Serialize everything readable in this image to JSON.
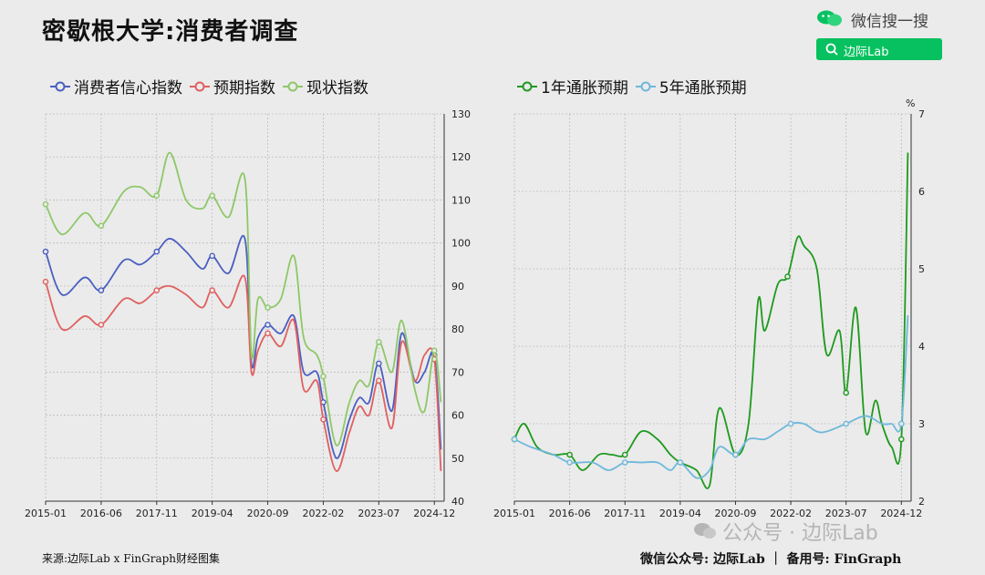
{
  "title": "密歇根大学:消费者调查",
  "brand": {
    "text": "微信搜一搜",
    "search_text": "边际Lab",
    "accent": "#07c160"
  },
  "footer": {
    "source": "来源:边际Lab x FinGraph财经图集",
    "right": "微信公众号: 边际Lab ｜ 备用号: FinGraph"
  },
  "watermark": "公众号 · 边际Lab",
  "chart_data": [
    {
      "type": "line",
      "legend_position": "top-left",
      "grid": true,
      "x_ticks": [
        "2015-01",
        "2016-06",
        "2017-11",
        "2019-04",
        "2020-09",
        "2022-02",
        "2023-07",
        "2024-12"
      ],
      "x_range": [
        "2015-01",
        "2024-12"
      ],
      "ylim": [
        40,
        130
      ],
      "y_ticks": [
        40,
        50,
        60,
        70,
        80,
        90,
        100,
        110,
        120,
        130
      ],
      "series": [
        {
          "name": "消费者信心指数",
          "color": "#4a5fc1",
          "x": [
            "2015-01",
            "2015-06",
            "2016-01",
            "2016-06",
            "2017-01",
            "2017-06",
            "2017-11",
            "2018-03",
            "2018-08",
            "2019-01",
            "2019-04",
            "2019-09",
            "2020-02",
            "2020-04",
            "2020-06",
            "2020-09",
            "2021-01",
            "2021-05",
            "2021-08",
            "2021-12",
            "2022-02",
            "2022-06",
            "2022-10",
            "2023-01",
            "2023-04",
            "2023-07",
            "2023-11",
            "2024-02",
            "2024-06",
            "2024-09",
            "2024-12",
            "2025-02"
          ],
          "values": [
            98,
            88,
            92,
            89,
            96,
            95,
            98,
            101,
            98,
            94,
            97,
            93,
            101,
            72,
            78,
            81,
            79,
            83,
            70,
            70,
            63,
            50,
            59,
            64,
            63,
            72,
            61,
            79,
            68,
            70,
            74,
            52
          ]
        },
        {
          "name": "预期指数",
          "color": "#e06060",
          "x": [
            "2015-01",
            "2015-06",
            "2016-01",
            "2016-06",
            "2017-01",
            "2017-06",
            "2017-11",
            "2018-03",
            "2018-08",
            "2019-01",
            "2019-04",
            "2019-09",
            "2020-02",
            "2020-04",
            "2020-06",
            "2020-09",
            "2021-01",
            "2021-05",
            "2021-08",
            "2021-12",
            "2022-02",
            "2022-06",
            "2022-10",
            "2023-01",
            "2023-04",
            "2023-07",
            "2023-11",
            "2024-02",
            "2024-06",
            "2024-09",
            "2024-12",
            "2025-02"
          ],
          "values": [
            91,
            80,
            83,
            81,
            87,
            86,
            89,
            90,
            88,
            85,
            89,
            85,
            92,
            70,
            75,
            79,
            76,
            82,
            66,
            68,
            59,
            47,
            56,
            62,
            60,
            68,
            57,
            77,
            68,
            74,
            73,
            47
          ]
        },
        {
          "name": "现状指数",
          "color": "#8ec868",
          "x": [
            "2015-01",
            "2015-06",
            "2016-01",
            "2016-06",
            "2017-01",
            "2017-06",
            "2017-11",
            "2018-03",
            "2018-08",
            "2019-01",
            "2019-04",
            "2019-09",
            "2020-02",
            "2020-04",
            "2020-06",
            "2020-09",
            "2021-01",
            "2021-05",
            "2021-08",
            "2021-12",
            "2022-02",
            "2022-06",
            "2022-10",
            "2023-01",
            "2023-04",
            "2023-07",
            "2023-11",
            "2024-02",
            "2024-06",
            "2024-09",
            "2024-12",
            "2025-02"
          ],
          "values": [
            109,
            102,
            107,
            104,
            112,
            113,
            111,
            121,
            110,
            108,
            111,
            106,
            115,
            74,
            87,
            85,
            87,
            97,
            78,
            74,
            69,
            53,
            63,
            68,
            67,
            77,
            70,
            82,
            66,
            61,
            75,
            63
          ]
        }
      ]
    },
    {
      "type": "line",
      "legend_position": "top-left",
      "grid": true,
      "y_unit": "%",
      "x_ticks": [
        "2015-01",
        "2016-06",
        "2017-11",
        "2019-04",
        "2020-09",
        "2022-02",
        "2023-07",
        "2024-12"
      ],
      "x_range": [
        "2015-01",
        "2024-12"
      ],
      "ylim": [
        2,
        7
      ],
      "y_ticks": [
        2,
        3,
        4,
        5,
        6,
        7
      ],
      "series": [
        {
          "name": "1年通胀预期",
          "color": "#1e9a1e",
          "x": [
            "2015-01",
            "2015-04",
            "2015-08",
            "2016-01",
            "2016-06",
            "2016-10",
            "2017-03",
            "2017-07",
            "2017-11",
            "2018-04",
            "2018-09",
            "2019-01",
            "2019-04",
            "2019-09",
            "2020-01",
            "2020-04",
            "2020-09",
            "2021-01",
            "2021-04",
            "2021-06",
            "2021-10",
            "2022-01",
            "2022-04",
            "2022-06",
            "2022-10",
            "2023-01",
            "2023-05",
            "2023-07",
            "2023-10",
            "2024-01",
            "2024-04",
            "2024-06",
            "2024-09",
            "2024-12",
            "2025-02"
          ],
          "values": [
            2.8,
            3.0,
            2.7,
            2.6,
            2.6,
            2.4,
            2.6,
            2.6,
            2.6,
            2.9,
            2.8,
            2.6,
            2.5,
            2.4,
            2.2,
            3.2,
            2.6,
            3.0,
            4.6,
            4.2,
            4.8,
            4.9,
            5.4,
            5.3,
            5.0,
            3.9,
            4.2,
            3.4,
            4.5,
            2.9,
            3.3,
            3.0,
            2.7,
            2.8,
            6.5
          ]
        },
        {
          "name": "5年通胀预期",
          "color": "#6fb8dc",
          "x": [
            "2015-01",
            "2015-06",
            "2016-01",
            "2016-06",
            "2017-01",
            "2017-06",
            "2017-11",
            "2018-04",
            "2018-09",
            "2019-01",
            "2019-04",
            "2019-09",
            "2020-01",
            "2020-04",
            "2020-09",
            "2021-01",
            "2021-06",
            "2021-10",
            "2022-02",
            "2022-06",
            "2022-10",
            "2023-01",
            "2023-07",
            "2024-01",
            "2024-06",
            "2024-09",
            "2024-12",
            "2025-02"
          ],
          "values": [
            2.8,
            2.7,
            2.6,
            2.5,
            2.5,
            2.4,
            2.5,
            2.5,
            2.5,
            2.4,
            2.5,
            2.3,
            2.4,
            2.7,
            2.6,
            2.8,
            2.8,
            2.9,
            3.0,
            3.0,
            2.9,
            2.9,
            3.0,
            3.1,
            3.0,
            3.0,
            3.0,
            4.4
          ]
        }
      ]
    }
  ]
}
